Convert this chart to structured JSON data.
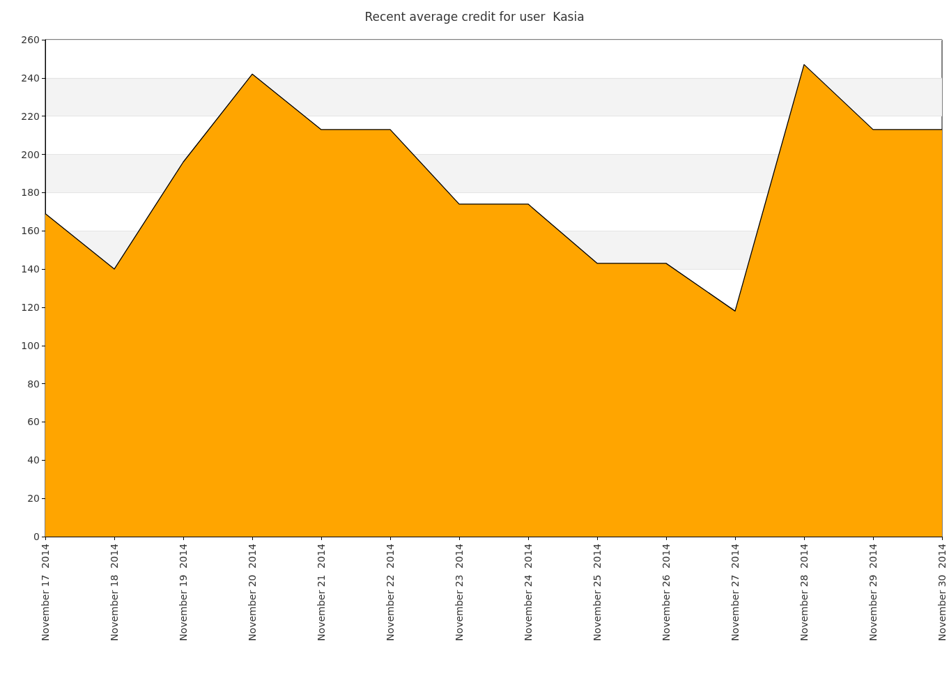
{
  "chart_data": {
    "type": "area",
    "title": "Recent average credit for user  Kasia",
    "categories": [
      "November 17  2014",
      "November 18  2014",
      "November 19  2014",
      "November 20  2014",
      "November 21  2014",
      "November 22  2014",
      "November 23  2014",
      "November 24  2014",
      "November 25  2014",
      "November 26  2014",
      "November 27  2014",
      "November 28  2014",
      "November 29  2014",
      "November 30  2014"
    ],
    "series": [
      {
        "color": "#ffa500",
        "values": [
          169,
          140,
          196,
          242,
          213,
          213,
          174,
          174,
          143,
          143,
          118,
          247,
          213,
          213
        ]
      }
    ],
    "ylim": [
      0,
      260
    ],
    "yticks": [
      0,
      20,
      40,
      60,
      80,
      100,
      120,
      140,
      160,
      180,
      200,
      220,
      240,
      260
    ],
    "grid": "y",
    "marker": "none",
    "line_style": "solid"
  }
}
